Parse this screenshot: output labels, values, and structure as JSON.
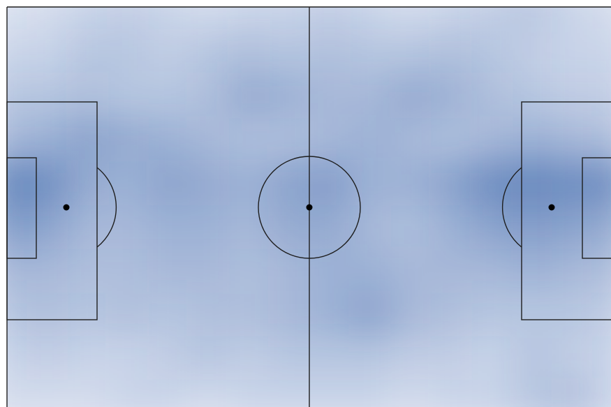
{
  "chart_data": {
    "type": "heatmap",
    "color": "#3b65aa",
    "values": [
      [
        0.1,
        0.15,
        0.2,
        0.25,
        0.2,
        0.15,
        0.2,
        0.2,
        0.25,
        0.2,
        0.15,
        0.2,
        0.25,
        0.3,
        0.2,
        0.15
      ],
      [
        0.2,
        0.2,
        0.3,
        0.3,
        0.25,
        0.3,
        0.35,
        0.3,
        0.35,
        0.3,
        0.3,
        0.35,
        0.3,
        0.25,
        0.2,
        0.2
      ],
      [
        0.3,
        0.3,
        0.35,
        0.3,
        0.3,
        0.35,
        0.5,
        0.45,
        0.4,
        0.4,
        0.5,
        0.45,
        0.35,
        0.3,
        0.25,
        0.25
      ],
      [
        0.4,
        0.45,
        0.55,
        0.5,
        0.45,
        0.4,
        0.35,
        0.35,
        0.4,
        0.45,
        0.4,
        0.35,
        0.4,
        0.45,
        0.4,
        0.35
      ],
      [
        0.75,
        0.7,
        0.5,
        0.45,
        0.55,
        0.5,
        0.45,
        0.55,
        0.6,
        0.45,
        0.45,
        0.55,
        0.7,
        0.75,
        0.7,
        0.7
      ],
      [
        0.6,
        0.55,
        0.4,
        0.4,
        0.45,
        0.45,
        0.4,
        0.5,
        0.5,
        0.4,
        0.35,
        0.45,
        0.55,
        0.6,
        0.55,
        0.5
      ],
      [
        0.4,
        0.4,
        0.35,
        0.35,
        0.4,
        0.4,
        0.35,
        0.4,
        0.45,
        0.45,
        0.4,
        0.4,
        0.4,
        0.45,
        0.4,
        0.35
      ],
      [
        0.3,
        0.35,
        0.3,
        0.35,
        0.3,
        0.35,
        0.35,
        0.4,
        0.45,
        0.55,
        0.4,
        0.35,
        0.3,
        0.3,
        0.3,
        0.25
      ],
      [
        0.2,
        0.25,
        0.2,
        0.2,
        0.25,
        0.3,
        0.25,
        0.3,
        0.3,
        0.3,
        0.25,
        0.25,
        0.2,
        0.3,
        0.25,
        0.2
      ],
      [
        0.15,
        0.15,
        0.15,
        0.2,
        0.2,
        0.15,
        0.2,
        0.2,
        0.2,
        0.2,
        0.15,
        0.2,
        0.2,
        0.3,
        0.35,
        0.2
      ]
    ]
  }
}
